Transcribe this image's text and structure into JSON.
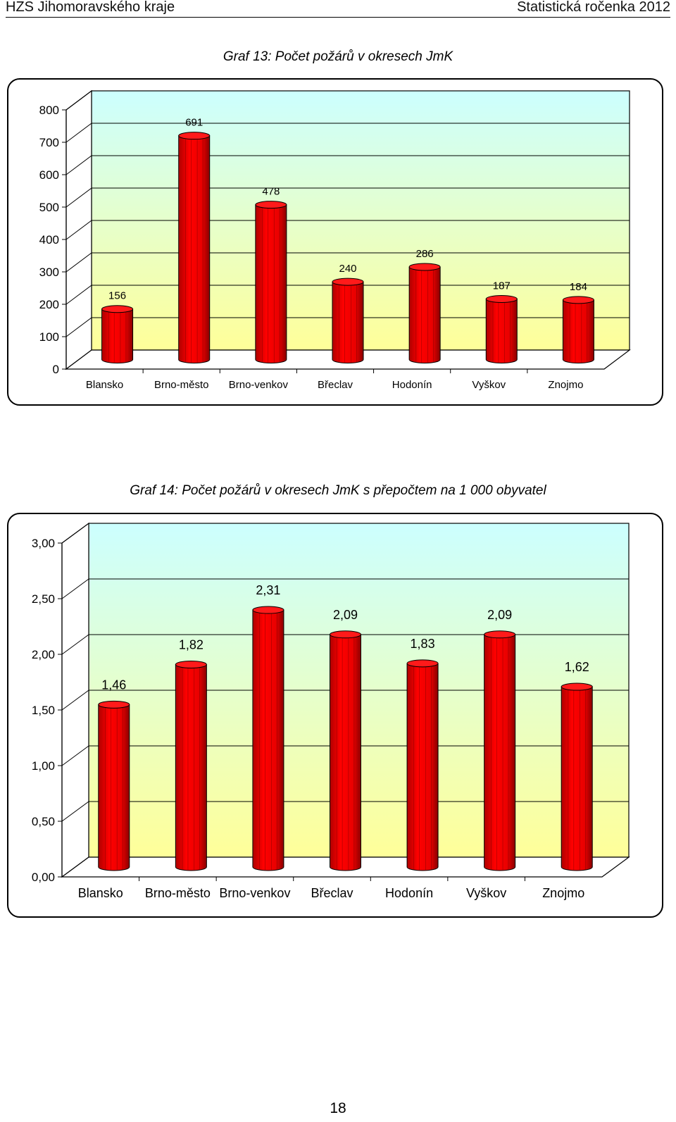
{
  "header": {
    "left": "HZS Jihomoravského kraje",
    "right": "Statistická ročenka 2012"
  },
  "page_number": "18",
  "chart_data": [
    {
      "type": "bar",
      "title": "Graf 13: Počet požárů v okresech JmK",
      "categories": [
        "Blansko",
        "Brno-město",
        "Brno-venkov",
        "Břeclav",
        "Hodonín",
        "Vyškov",
        "Znojmo"
      ],
      "values": [
        156,
        691,
        478,
        240,
        286,
        187,
        184
      ],
      "value_labels": [
        "156",
        "691",
        "478",
        "240",
        "286",
        "187",
        "184"
      ],
      "yticks": [
        "0",
        "100",
        "200",
        "300",
        "400",
        "500",
        "600",
        "700",
        "800"
      ],
      "ylim": [
        0,
        800
      ],
      "xlabel": "",
      "ylabel": "",
      "grid": true,
      "colors": {
        "bar": "#ff0000",
        "wall_top": "#ccffff",
        "wall_bottom": "#ffff99"
      }
    },
    {
      "type": "bar",
      "title": "Graf 14: Počet požárů v okresech JmK s přepočtem na 1 000 obyvatel",
      "categories": [
        "Blansko",
        "Brno-město",
        "Brno-venkov",
        "Břeclav",
        "Hodonín",
        "Vyškov",
        "Znojmo"
      ],
      "values": [
        1.46,
        1.82,
        2.31,
        2.09,
        1.83,
        2.09,
        1.62
      ],
      "value_labels": [
        "1,46",
        "1,82",
        "2,31",
        "2,09",
        "1,83",
        "2,09",
        "1,62"
      ],
      "yticks": [
        "0,00",
        "0,50",
        "1,00",
        "1,50",
        "2,00",
        "2,50",
        "3,00"
      ],
      "ylim": [
        0,
        3
      ],
      "xlabel": "",
      "ylabel": "",
      "grid": true,
      "colors": {
        "bar": "#ff0000",
        "wall_top": "#ccffff",
        "wall_bottom": "#ffff99"
      }
    }
  ]
}
